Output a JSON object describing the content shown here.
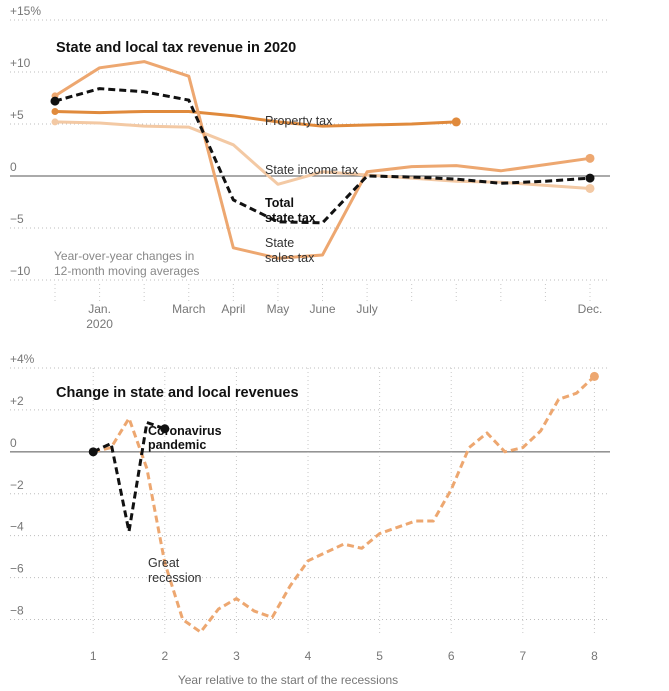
{
  "chart_data": [
    {
      "type": "line",
      "title": "State and local tax revenue in 2020",
      "note": [
        "Year-over-year changes in",
        "12-month moving averages"
      ],
      "x_ticks": [
        {
          "x": 1,
          "label": "Jan.",
          "label2": "2020"
        },
        {
          "x": 3,
          "label": "March"
        },
        {
          "x": 4,
          "label": "April"
        },
        {
          "x": 5,
          "label": "May"
        },
        {
          "x": 6,
          "label": "June"
        },
        {
          "x": 7,
          "label": "July"
        },
        {
          "x": 12,
          "label": "Dec."
        }
      ],
      "x_extra_ticks": [
        0,
        2,
        8,
        9,
        10,
        11
      ],
      "y_ticks": [
        {
          "value": 15,
          "label": "+15%"
        },
        {
          "value": 10,
          "label": "+10"
        },
        {
          "value": 5,
          "label": "+5"
        },
        {
          "value": 0,
          "label": "0"
        },
        {
          "value": -5,
          "label": "−5"
        },
        {
          "value": -10,
          "label": "−10"
        }
      ],
      "xlim": [
        0,
        12
      ],
      "ylim": [
        -10,
        15
      ],
      "series": [
        {
          "name": "Property tax",
          "color": "#e08a3c",
          "style": "solid",
          "end_marker": true,
          "points": [
            [
              0,
              6.2
            ],
            [
              1,
              6.1
            ],
            [
              2,
              6.2
            ],
            [
              3,
              6.2
            ],
            [
              4,
              5.8
            ],
            [
              5,
              5.2
            ],
            [
              6,
              4.8
            ],
            [
              7,
              4.9
            ],
            [
              8,
              5.0
            ],
            [
              9,
              5.2
            ]
          ]
        },
        {
          "name": "State income tax",
          "color": "#f3c9a4",
          "style": "solid",
          "end_marker": true,
          "points": [
            [
              0,
              5.2
            ],
            [
              1,
              5.1
            ],
            [
              2,
              4.8
            ],
            [
              3,
              4.7
            ],
            [
              4,
              3.0
            ],
            [
              5,
              -0.8
            ],
            [
              6,
              0.4
            ],
            [
              7,
              0.1
            ],
            [
              8,
              -0.2
            ],
            [
              9,
              -0.5
            ],
            [
              10,
              -0.6
            ],
            [
              11,
              -0.9
            ],
            [
              12,
              -1.2
            ]
          ]
        },
        {
          "name": "State sales tax",
          "color": "#eda770",
          "style": "solid",
          "end_marker": true,
          "points": [
            [
              0,
              7.7
            ],
            [
              1,
              10.4
            ],
            [
              2,
              11.0
            ],
            [
              3,
              9.6
            ],
            [
              4,
              -6.9
            ],
            [
              5,
              -7.9
            ],
            [
              6,
              -7.6
            ],
            [
              7,
              0.4
            ],
            [
              8,
              0.9
            ],
            [
              9,
              1.0
            ],
            [
              10,
              0.5
            ],
            [
              11,
              1.1
            ],
            [
              12,
              1.7
            ]
          ]
        },
        {
          "name": "Total state tax",
          "color": "#111111",
          "style": "dashed",
          "start_marker": true,
          "end_marker": true,
          "points": [
            [
              0,
              7.2
            ],
            [
              1,
              8.4
            ],
            [
              2,
              8.1
            ],
            [
              3,
              7.3
            ],
            [
              4,
              -2.3
            ],
            [
              5,
              -4.4
            ],
            [
              6,
              -4.5
            ],
            [
              7,
              0.0
            ],
            [
              8,
              -0.1
            ],
            [
              9,
              -0.3
            ],
            [
              10,
              -0.7
            ],
            [
              11,
              -0.5
            ],
            [
              12,
              -0.2
            ]
          ]
        }
      ],
      "labels": [
        "Property tax",
        "State income tax",
        "Total",
        "state tax",
        "State",
        "sales tax"
      ]
    },
    {
      "type": "line",
      "title": "Change in state and local revenues",
      "xlabel": "Year relative to the start of the recessions",
      "x_ticks": [
        1,
        2,
        3,
        4,
        5,
        6,
        7,
        8
      ],
      "y_ticks": [
        {
          "value": 4,
          "label": "+4%"
        },
        {
          "value": 2,
          "label": "+2"
        },
        {
          "value": 0,
          "label": "0"
        },
        {
          "value": -2,
          "label": "−2"
        },
        {
          "value": -4,
          "label": "−4"
        },
        {
          "value": -6,
          "label": "−6"
        },
        {
          "value": -8,
          "label": "−8"
        }
      ],
      "xlim": [
        0.55,
        8.05
      ],
      "ylim": [
        -8.5,
        4
      ],
      "series": [
        {
          "name": "Great recession",
          "color": "#eda770",
          "style": "dashed",
          "end_marker": true,
          "points": [
            [
              1.0,
              0.0
            ],
            [
              1.25,
              0.2
            ],
            [
              1.5,
              1.6
            ],
            [
              1.75,
              -0.8
            ],
            [
              2.0,
              -5.3
            ],
            [
              2.25,
              -8.0
            ],
            [
              2.5,
              -8.6
            ],
            [
              2.75,
              -7.5
            ],
            [
              3.0,
              -7.0
            ],
            [
              3.25,
              -7.6
            ],
            [
              3.5,
              -7.9
            ],
            [
              3.75,
              -6.4
            ],
            [
              4.0,
              -5.2
            ],
            [
              4.25,
              -4.8
            ],
            [
              4.5,
              -4.4
            ],
            [
              4.75,
              -4.6
            ],
            [
              5.0,
              -3.9
            ],
            [
              5.25,
              -3.6
            ],
            [
              5.5,
              -3.3
            ],
            [
              5.75,
              -3.3
            ],
            [
              6.0,
              -1.8
            ],
            [
              6.25,
              0.2
            ],
            [
              6.5,
              0.9
            ],
            [
              6.75,
              0.0
            ],
            [
              7.0,
              0.2
            ],
            [
              7.25,
              1.0
            ],
            [
              7.5,
              2.5
            ],
            [
              7.75,
              2.8
            ],
            [
              8.0,
              3.6
            ]
          ]
        },
        {
          "name": "Coronavirus pandemic",
          "color": "#111111",
          "style": "dashed",
          "start_marker": true,
          "end_marker": true,
          "points": [
            [
              1.0,
              0.0
            ],
            [
              1.25,
              0.4
            ],
            [
              1.5,
              -3.8
            ],
            [
              1.75,
              1.4
            ],
            [
              2.0,
              1.1
            ]
          ]
        }
      ],
      "labels": [
        "Coronavirus",
        "pandemic",
        "Great",
        "recession"
      ]
    }
  ]
}
